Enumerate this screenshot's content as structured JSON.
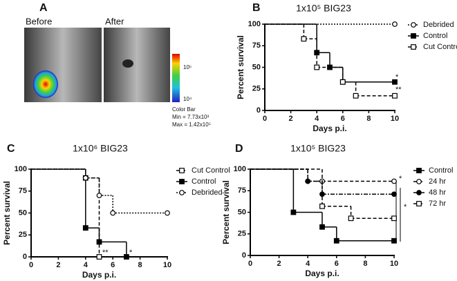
{
  "panel_a": {
    "panel": "A",
    "before": "Before",
    "after": "After",
    "colorbar_max": "10⁵",
    "colorbar_min": "10⁴",
    "colorbar_title": "Color Bar",
    "min_text": "Min = 7.73x10³",
    "max_text": "Max = 1.42x10⁵"
  },
  "chart_data": [
    {
      "type": "line",
      "step": true,
      "panel": "B",
      "title": "1x10⁵ BIG23",
      "x_label": "Days p.i.",
      "y_label": "Percent survival",
      "xlim": [
        0,
        10
      ],
      "xticks": [
        0,
        2,
        4,
        6,
        8,
        10
      ],
      "ylim": [
        0,
        100
      ],
      "yticks": [
        0,
        25,
        50,
        75,
        100
      ],
      "legend": "right",
      "series": [
        {
          "name": "Debrided",
          "color": "#000000",
          "dash": "dotted",
          "marker": "open-circle",
          "x": [
            0,
            10
          ],
          "values": [
            100,
            100
          ]
        },
        {
          "name": "Control",
          "color": "#000000",
          "dash": "solid",
          "marker": "filled-square",
          "x": [
            0,
            4,
            5,
            6,
            10
          ],
          "values": [
            100,
            67,
            50,
            33,
            33
          ]
        },
        {
          "name": "Cut Control",
          "color": "#000000",
          "dash": "dashed",
          "marker": "open-square",
          "x": [
            0,
            3,
            4,
            6,
            7,
            10
          ],
          "values": [
            100,
            83,
            50,
            33,
            17,
            17
          ]
        }
      ],
      "annotations": [
        "*",
        "**"
      ]
    },
    {
      "type": "line",
      "step": true,
      "panel": "C",
      "title": "1x10⁶ BIG23",
      "x_label": "Days p.i.",
      "y_label": "Percent survival",
      "xlim": [
        0,
        10
      ],
      "xticks": [
        0,
        2,
        4,
        6,
        8,
        10
      ],
      "ylim": [
        0,
        100
      ],
      "yticks": [
        0,
        25,
        50,
        75,
        100
      ],
      "legend": "right",
      "series": [
        {
          "name": "Cut Control",
          "color": "#000000",
          "dash": "dashed",
          "marker": "open-square",
          "x": [
            0,
            4,
            5
          ],
          "values": [
            100,
            90,
            0
          ]
        },
        {
          "name": "Control",
          "color": "#000000",
          "dash": "solid",
          "marker": "filled-square",
          "x": [
            0,
            4,
            5,
            7
          ],
          "values": [
            100,
            33,
            17,
            0
          ]
        },
        {
          "name": "Debrided",
          "color": "#000000",
          "dash": "dotted",
          "marker": "open-circle",
          "x": [
            0,
            4,
            5,
            6,
            10
          ],
          "values": [
            100,
            90,
            70,
            50,
            50
          ]
        }
      ],
      "annotations": [
        "**",
        "*"
      ]
    },
    {
      "type": "line",
      "step": true,
      "panel": "D",
      "title": "1x10⁵ BIG23",
      "x_label": "Days p.i.",
      "y_label": "Percent survival",
      "xlim": [
        0,
        10
      ],
      "xticks": [
        0,
        2,
        4,
        6,
        8,
        10
      ],
      "ylim": [
        0,
        100
      ],
      "yticks": [
        0,
        25,
        50,
        75,
        100
      ],
      "legend": "right",
      "series": [
        {
          "name": "Control",
          "color": "#000000",
          "dash": "solid",
          "marker": "filled-square",
          "x": [
            0,
            3,
            5,
            6,
            10
          ],
          "values": [
            100,
            50,
            33,
            17,
            17
          ]
        },
        {
          "name": "24 hr",
          "color": "#000000",
          "dash": "dashed",
          "marker": "open-circle",
          "x": [
            0,
            4,
            5,
            10
          ],
          "values": [
            100,
            86,
            86,
            86
          ]
        },
        {
          "name": "48 hr",
          "color": "#000000",
          "dash": "dash-dot",
          "marker": "filled-circle",
          "x": [
            0,
            4,
            5,
            10
          ],
          "values": [
            100,
            86,
            71,
            71
          ]
        },
        {
          "name": "72 hr",
          "color": "#000000",
          "dash": "dashed",
          "marker": "open-square",
          "x": [
            0,
            5,
            7,
            10
          ],
          "values": [
            100,
            57,
            43,
            43
          ]
        }
      ],
      "annotations": [
        "*",
        "*"
      ]
    }
  ]
}
